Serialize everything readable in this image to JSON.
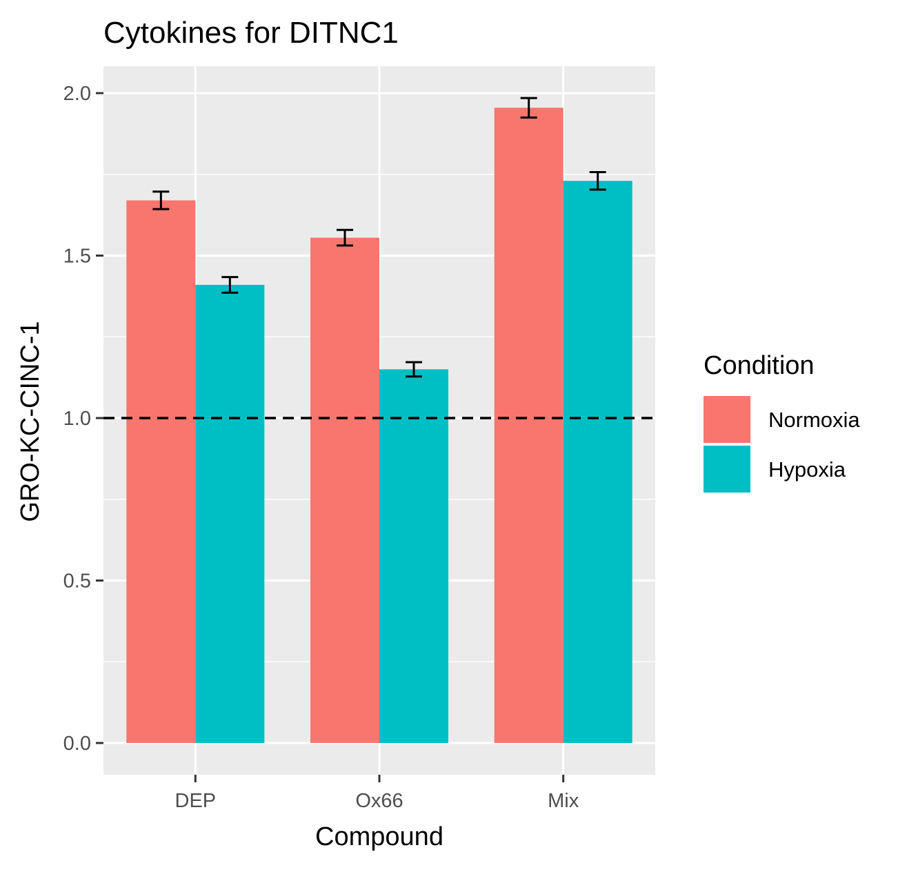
{
  "chart_data": {
    "type": "bar",
    "title": "Cytokines for DITNC1",
    "xlabel": "Compound",
    "ylabel": "GRO-KC-CINC-1",
    "categories": [
      "DEP",
      "Ox66",
      "Mix"
    ],
    "series": [
      {
        "name": "Normoxia",
        "color": "#F8766D",
        "values": [
          1.67,
          1.555,
          1.955
        ],
        "errors": [
          0.027,
          0.024,
          0.03
        ]
      },
      {
        "name": "Hypoxia",
        "color": "#00BFC4",
        "values": [
          1.41,
          1.15,
          1.73
        ],
        "errors": [
          0.024,
          0.022,
          0.027
        ]
      }
    ],
    "ylim": [
      -0.1,
      2.08
    ],
    "yticks": [
      0.0,
      0.5,
      1.0,
      1.5,
      2.0
    ],
    "ytick_labels": [
      "0.0",
      "0.5",
      "1.0",
      "1.5",
      "2.0"
    ],
    "reference_line": {
      "y": 1.0,
      "style": "dashed"
    },
    "legend": {
      "title": "Condition",
      "placement": "right"
    },
    "grid": true,
    "panel_background": "#EBEBEB"
  }
}
